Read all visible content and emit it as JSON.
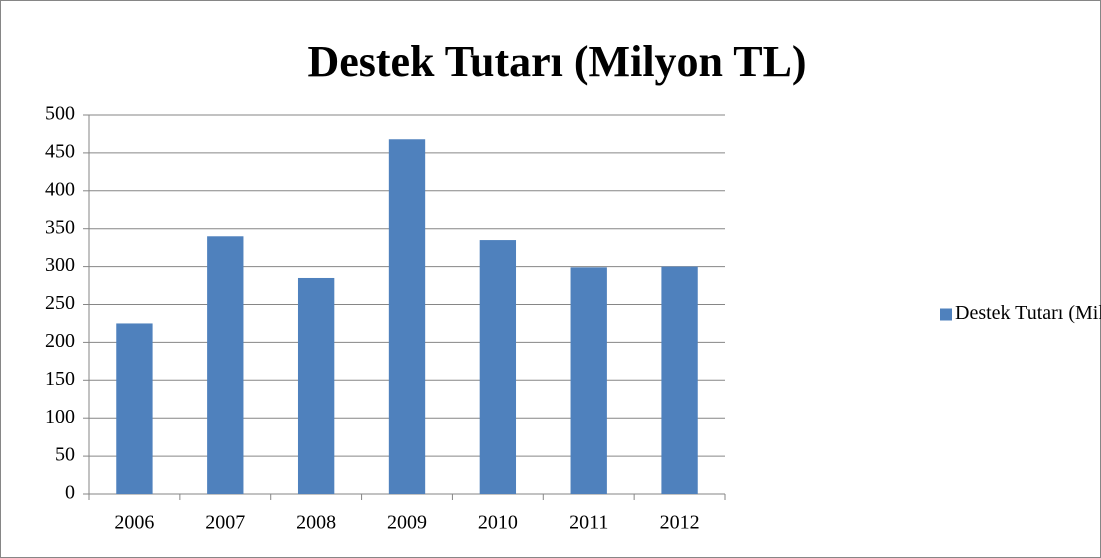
{
  "chart_data": {
    "type": "bar",
    "title": "Destek Tutarı (Milyon TL)",
    "categories": [
      "2006",
      "2007",
      "2008",
      "2009",
      "2010",
      "2011",
      "2012"
    ],
    "series": [
      {
        "name": "Destek Tutarı (Milyon TL)",
        "color": "#4f81bd",
        "values": [
          225,
          340,
          285,
          468,
          335,
          299,
          300
        ]
      }
    ],
    "ylim": [
      0,
      500
    ],
    "yticks": [
      0,
      50,
      100,
      150,
      200,
      250,
      300,
      350,
      400,
      450,
      500
    ],
    "grid": true,
    "legend": "right"
  }
}
